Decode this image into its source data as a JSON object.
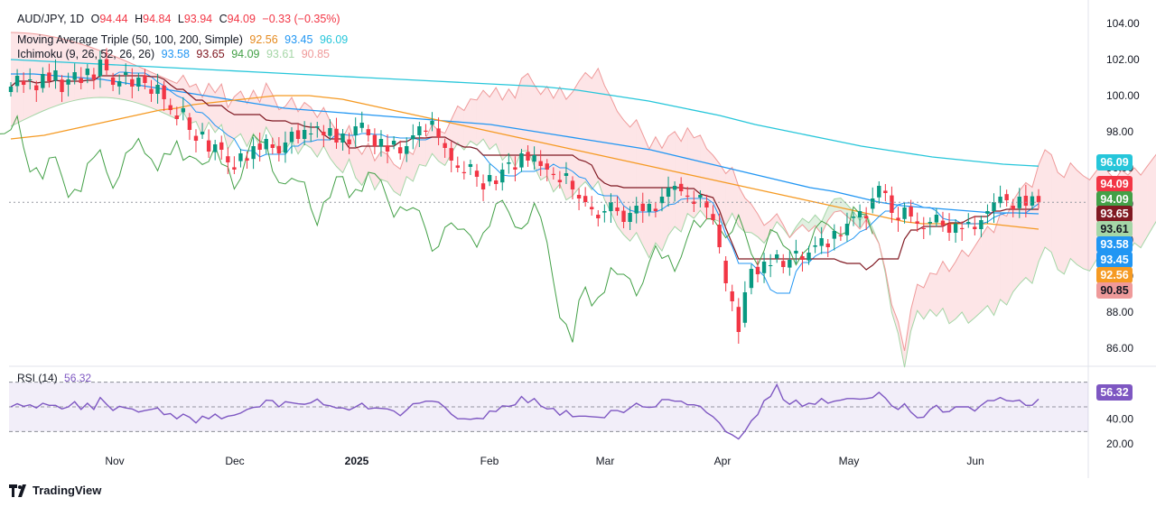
{
  "legend": {
    "symbol": "AUD/JPY, 1D",
    "o_label": "O",
    "o": "94.44",
    "h_label": "H",
    "h": "94.84",
    "l_label": "L",
    "l": "93.94",
    "c_label": "C",
    "c": "94.09",
    "change": "−0.33 (−0.35%)",
    "ma_name": "Moving Average Triple (50, 100, 200, Simple)",
    "ma50": "92.56",
    "ma100": "93.45",
    "ma200": "96.09",
    "ichi_name": "Ichimoku (9, 26, 52, 26, 26)",
    "ichi_conv": "93.58",
    "ichi_base": "93.65",
    "ichi_lag": "94.09",
    "ichi_spanA": "93.61",
    "ichi_spanB": "90.85",
    "rsi_name": "RSI (14)",
    "rsi_value": "56.32"
  },
  "badges": [
    {
      "text": "96.09",
      "value": 96.09,
      "color": "#26c6da"
    },
    {
      "text": "94.09",
      "value": 94.09,
      "color": "#f23645"
    },
    {
      "text": "94.09",
      "value": 94.09,
      "color": "#43a047"
    },
    {
      "text": "93.65",
      "value": 93.65,
      "color": "#801922"
    },
    {
      "text": "93.61",
      "value": 93.61,
      "color": "#a5d6a7"
    },
    {
      "text": "93.58",
      "value": 93.58,
      "color": "#2196f3"
    },
    {
      "text": "93.45",
      "value": 93.45,
      "color": "#2196f3"
    },
    {
      "text": "92.56",
      "value": 92.56,
      "color": "#f59a23"
    },
    {
      "text": "90.85",
      "value": 90.85,
      "color": "#ef9a9a"
    }
  ],
  "rsi_badge": {
    "text": "56.32",
    "color": "#7e57c2"
  },
  "branding": "TradingView",
  "colors": {
    "up": "#089981",
    "down": "#f23645",
    "ma50": "#f59a23",
    "ma100": "#2196f3",
    "ma200": "#26c6da",
    "conv": "#2196f3",
    "base": "#801922",
    "lag": "#43a047",
    "rsi": "#7e57c2"
  },
  "chart_data": {
    "type": "candlestick",
    "price_axis": {
      "ticks": [
        104,
        102,
        100,
        98,
        96,
        94,
        92,
        90,
        88,
        86
      ],
      "range": [
        85.2,
        104.4
      ]
    },
    "rsi_axis": {
      "ticks": [
        80,
        40,
        20
      ],
      "tick_labels": [
        "",
        "40.00",
        "20.00"
      ],
      "bands": [
        70,
        50,
        30
      ],
      "range": [
        20,
        80
      ]
    },
    "time_axis": [
      "Nov",
      "Dec",
      "2025",
      "Feb",
      "Mar",
      "Apr",
      "May",
      "Jun"
    ],
    "series": {
      "candles_close": [
        100.5,
        101.1,
        100.6,
        100.9,
        100.3,
        101.2,
        100.8,
        101.4,
        100.2,
        100.9,
        101.3,
        100.7,
        101.5,
        100.9,
        102.0,
        101.4,
        100.6,
        100.8,
        101.3,
        100.5,
        101.0,
        100.7,
        100.1,
        100.6,
        99.8,
        99.2,
        98.7,
        99.3,
        98.1,
        97.5,
        98.0,
        96.9,
        97.3,
        97.0,
        96.3,
        95.9,
        96.8,
        96.4,
        97.2,
        97.0,
        97.6,
        97.1,
        96.8,
        97.4,
        98.0,
        97.6,
        98.1,
        97.9,
        98.3,
        97.8,
        98.2,
        97.4,
        97.9,
        97.3,
        98.3,
        98.5,
        97.8,
        97.2,
        97.6,
        96.9,
        97.5,
        96.8,
        97.2,
        97.8,
        98.3,
        98.0,
        98.6,
        97.7,
        97.1,
        96.4,
        96.0,
        95.7,
        96.2,
        95.5,
        94.8,
        95.6,
        95.1,
        95.9,
        96.3,
        95.9,
        96.8,
        96.4,
        96.7,
        96.1,
        95.9,
        95.6,
        95.2,
        95.7,
        94.8,
        94.3,
        94.1,
        93.7,
        93.2,
        93.6,
        94.1,
        93.6,
        93.0,
        93.5,
        93.9,
        93.6,
        94.0,
        93.6,
        94.4,
        94.9,
        95.0,
        94.7,
        94.4,
        94.0,
        94.5,
        93.8,
        93.1,
        91.6,
        89.6,
        88.6,
        86.9,
        89.1,
        90.4,
        90.1,
        90.8,
        90.6,
        91.2,
        90.5,
        90.9,
        91.4,
        90.9,
        91.3,
        91.7,
        92.1,
        91.6,
        92.5,
        92.2,
        92.9,
        93.3,
        93.6,
        93.2,
        94.3,
        95.0,
        94.6,
        93.5,
        93.1,
        93.8,
        93.3,
        92.9,
        92.6,
        93.0,
        93.4,
        92.8,
        92.4,
        92.9,
        92.6,
        93.0,
        92.6,
        93.1,
        93.6,
        94.1,
        94.4,
        94.2,
        93.7,
        94.4,
        93.9,
        94.42,
        94.09
      ],
      "ma50": [
        97.6,
        97.7,
        97.8,
        98.0,
        98.2,
        98.4,
        98.6,
        98.8,
        99.0,
        99.2,
        99.3,
        99.5,
        99.6,
        99.7,
        99.8,
        99.9,
        100.0,
        100.0,
        100.0,
        99.9,
        99.8,
        99.6,
        99.4,
        99.2,
        99.0,
        98.8,
        98.6,
        98.4,
        98.2,
        98.0,
        97.8,
        97.6,
        97.4,
        97.2,
        97.0,
        96.8,
        96.6,
        96.4,
        96.2,
        96.0,
        95.8,
        95.6,
        95.4,
        95.2,
        95.0,
        94.8,
        94.6,
        94.4,
        94.2,
        94.0,
        93.8,
        93.6,
        93.4,
        93.2,
        93.0,
        92.9,
        92.9,
        92.9,
        92.9,
        92.9,
        92.8,
        92.7,
        92.6
      ],
      "ma100": [
        101.2,
        101.2,
        101.1,
        101.0,
        100.9,
        100.7,
        100.5,
        100.3,
        100.1,
        99.9,
        99.7,
        99.5,
        99.3,
        99.2,
        99.1,
        99.0,
        98.9,
        98.8,
        98.7,
        98.6,
        98.5,
        98.4,
        98.2,
        98.0,
        97.8,
        97.6,
        97.4,
        97.2,
        97.0,
        96.7,
        96.4,
        96.1,
        95.8,
        95.5,
        95.2,
        94.9,
        94.7,
        94.4,
        94.1,
        93.9,
        93.8,
        93.7,
        93.6,
        93.5,
        93.5,
        93.45
      ],
      "ma200": [
        102.0,
        101.9,
        101.8,
        101.7,
        101.6,
        101.5,
        101.4,
        101.3,
        101.2,
        101.1,
        101.0,
        100.9,
        100.8,
        100.7,
        100.6,
        100.5,
        100.3,
        100.0,
        99.7,
        99.3,
        98.9,
        98.4,
        98.0,
        97.6,
        97.2,
        96.9,
        96.6,
        96.4,
        96.2,
        96.09
      ]
    }
  }
}
